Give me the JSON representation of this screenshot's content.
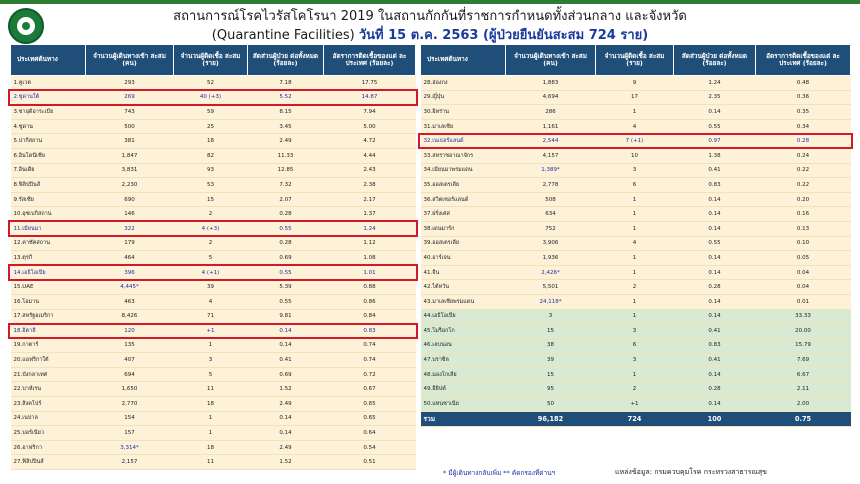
{
  "title": {
    "line1": "สถานการณ์โรคไวรัสโคโรนา 2019 ในสถานกักกันที่ราชการกำหนดทั้งส่วนกลาง และจังหวัด",
    "line2_prefix": "(Quarantine Facilities)",
    "line2_date": "วันที่ 15 ต.ค. 2563  (ผู้ป่วยยืนยันสะสม 724 ราย)"
  },
  "columns": {
    "country": "ประเทศต้นทาง",
    "arrivals": "จำนวนผู้เดินทางเข้า สะสม (คน)",
    "infected": "จำนวนผู้ติดเชื้อ สะสม (ราย)",
    "ratio": "สัดส่วนผู้ป่วย ต่อทั้งหมด (ร้อยละ)",
    "rate": "อัตราการติดเชื้อของแต่ ละประเทศ (ร้อยละ)"
  },
  "left_rows": [
    {
      "c": "1.คูเวต",
      "a": "293",
      "i": "52",
      "r": "7.18",
      "p": "17.75"
    },
    {
      "c": "2.ซูดานใต้",
      "a": "269",
      "i": "40 (+3)",
      "r": "5.52",
      "p": "14.87"
    },
    {
      "c": "3.ซาอุดิอาระเบีย",
      "a": "743",
      "i": "59",
      "r": "8.15",
      "p": "7.94"
    },
    {
      "c": "4.ซูดาน",
      "a": "500",
      "i": "25",
      "r": "3.45",
      "p": "5.00"
    },
    {
      "c": "5.ปากีสถาน",
      "a": "381",
      "i": "18",
      "r": "2.49",
      "p": "4.72"
    },
    {
      "c": "6.อินโดนีเซีย",
      "a": "1,847",
      "i": "82",
      "r": "11.33",
      "p": "4.44"
    },
    {
      "c": "7.อินเดีย",
      "a": "3,831",
      "i": "93",
      "r": "12.85",
      "p": "2.43"
    },
    {
      "c": "8.ฟิลิปปินส์",
      "a": "2,230",
      "i": "53",
      "r": "7.32",
      "p": "2.38"
    },
    {
      "c": "9.รัสเซีย",
      "a": "690",
      "i": "15",
      "r": "2.07",
      "p": "2.17"
    },
    {
      "c": "10.อุซเบกิสถาน",
      "a": "146",
      "i": "2",
      "r": "0.28",
      "p": "1.37"
    },
    {
      "c": "11.เมียนมา",
      "a": "322",
      "i": "4 (+3)",
      "r": "0.55",
      "p": "1.24"
    },
    {
      "c": "12.คาซัคสถาน",
      "a": "179",
      "i": "2",
      "r": "0.28",
      "p": "1.12"
    },
    {
      "c": "13.ตุรกี",
      "a": "464",
      "i": "5",
      "r": "0.69",
      "p": "1.08"
    },
    {
      "c": "14.เอธิโอเปีย",
      "a": "396",
      "i": "4 (+1)",
      "r": "0.55",
      "p": "1.01"
    },
    {
      "c": "15.UAE",
      "a": "4,445*",
      "i": "39",
      "r": "5.39",
      "p": "0.88"
    },
    {
      "c": "16.โอมาน",
      "a": "463",
      "i": "4",
      "r": "0.55",
      "p": "0.86"
    },
    {
      "c": "17.สหรัฐอเมริกา",
      "a": "8,426",
      "i": "71",
      "r": "9.81",
      "p": "0.84"
    },
    {
      "c": "18.อิตาลี",
      "a": "120",
      "i": "+1",
      "r": "0.14",
      "p": "0.83"
    },
    {
      "c": "19.กาตาร์",
      "a": "135",
      "i": "1",
      "r": "0.14",
      "p": "0.74"
    },
    {
      "c": "20.แอฟริกาใต้",
      "a": "407",
      "i": "3",
      "r": "0.41",
      "p": "0.74"
    },
    {
      "c": "21.บังกลาเทศ",
      "a": "694",
      "i": "5",
      "r": "0.69",
      "p": "0.72"
    },
    {
      "c": "22.บาห์เรน",
      "a": "1,650",
      "i": "11",
      "r": "1.52",
      "p": "0.67"
    },
    {
      "c": "23.สิงคโปร์",
      "a": "2,770",
      "i": "18",
      "r": "2.49",
      "p": "0.65"
    },
    {
      "c": "24.เนปาล",
      "a": "154",
      "i": "1",
      "r": "0.14",
      "p": "0.65"
    },
    {
      "c": "25.บอร์เนียว",
      "a": "157",
      "i": "1",
      "r": "0.14",
      "p": "0.64"
    },
    {
      "c": "26.อาฟริกา",
      "a": "3,314*",
      "i": "18",
      "r": "2.49",
      "p": "0.54"
    },
    {
      "c": "27.ฟิลิปปินส์",
      "a": "2,157",
      "i": "11",
      "r": "1.52",
      "p": "0.51"
    }
  ],
  "right_rows": [
    {
      "c": "28.ฮ่องกง",
      "a": "1,883",
      "i": "9",
      "r": "1.24",
      "p": "0.48"
    },
    {
      "c": "29.ญี่ปุ่น",
      "a": "4,694",
      "i": "17",
      "r": "2.35",
      "p": "0.36"
    },
    {
      "c": "30.อิหร่าน",
      "a": "286",
      "i": "1",
      "r": "0.14",
      "p": "0.35"
    },
    {
      "c": "31.มาเลเซีย",
      "a": "1,161",
      "i": "4",
      "r": "0.55",
      "p": "0.34"
    },
    {
      "c": "32.เนเธอร์แลนด์",
      "a": "2,544",
      "i": "7 (+1)",
      "r": "0.97",
      "p": "0.28"
    },
    {
      "c": "33.สหราชอาณาจักร",
      "a": "4,157",
      "i": "10",
      "r": "1.38",
      "p": "0.24"
    },
    {
      "c": "34.เมียนมาพรมแดน",
      "a": "1,389*",
      "i": "3",
      "r": "0.41",
      "p": "0.22"
    },
    {
      "c": "35.ออสเตรเลีย",
      "a": "2,778",
      "i": "6",
      "r": "0.83",
      "p": "0.22"
    },
    {
      "c": "36.สวิตเซอร์แลนด์",
      "a": "508",
      "i": "1",
      "r": "0.14",
      "p": "0.20"
    },
    {
      "c": "37.ฝรั่งเศส",
      "a": "634",
      "i": "1",
      "r": "0.14",
      "p": "0.16"
    },
    {
      "c": "38.เดนมาร์ก",
      "a": "752",
      "i": "1",
      "r": "0.14",
      "p": "0.13"
    },
    {
      "c": "39.ออสเตรเลีย",
      "a": "3,906",
      "i": "4",
      "r": "0.55",
      "p": "0.10"
    },
    {
      "c": "40.อาร์เจน",
      "a": "1,936",
      "i": "1",
      "r": "0.14",
      "p": "0.05"
    },
    {
      "c": "41.จีน",
      "a": "2,426*",
      "i": "1",
      "r": "0.14",
      "p": "0.04"
    },
    {
      "c": "42.ไต้หวัน",
      "a": "5,501",
      "i": "2",
      "r": "0.28",
      "p": "0.04"
    },
    {
      "c": "43.มาเลเซียพรมแดน",
      "a": "24,118*",
      "i": "1",
      "r": "0.14",
      "p": "0.01"
    },
    {
      "c": "44.เอธิโอเปีย",
      "a": "3",
      "i": "1",
      "r": "0.14",
      "p": "33.33"
    },
    {
      "c": "45.โมร็อกโก",
      "a": "15",
      "i": "3",
      "r": "0.41",
      "p": "20.00"
    },
    {
      "c": "46.เลบนอน",
      "a": "38",
      "i": "6",
      "r": "0.83",
      "p": "15.79"
    },
    {
      "c": "47.บราซิล",
      "a": "39",
      "i": "3",
      "r": "0.41",
      "p": "7.69"
    },
    {
      "c": "48.มองโกเลีย",
      "a": "15",
      "i": "1",
      "r": "0.14",
      "p": "6.67"
    },
    {
      "c": "49.อียิปต์",
      "a": "95",
      "i": "2",
      "r": "0.28",
      "p": "2.11"
    },
    {
      "c": "50.แทนซาเนีย",
      "a": "50",
      "i": "+1",
      "r": "0.14",
      "p": "2.00"
    }
  ],
  "total": {
    "label": "รวม",
    "a": "96,182",
    "i": "724",
    "r": "100",
    "p": "0.75"
  },
  "footnote": "* มีผู้เดินทางกลับเพิ่ม  ** คัดกรองที่ด่านฯ",
  "source": "แหล่งข้อมูล: กรมควบคุมโรค กระทรวงสาธารณสุข"
}
